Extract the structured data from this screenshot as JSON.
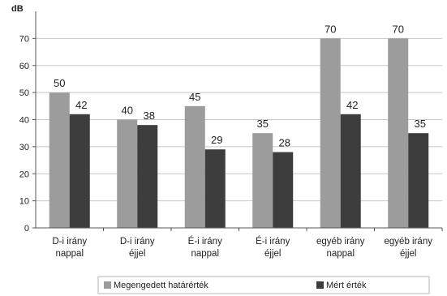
{
  "colors": {
    "series1": "#9c9c9c",
    "series2": "#3d3d3d",
    "axis": "#555555",
    "grid": "#c8c8c8"
  },
  "chart_data": {
    "type": "bar",
    "ylabel": "dB",
    "ylim": [
      0,
      80
    ],
    "yticks": [
      0,
      10,
      20,
      30,
      40,
      50,
      60,
      70
    ],
    "grid": true,
    "legend_position": "bottom",
    "categories": [
      [
        "D-i irány",
        "nappal"
      ],
      [
        "D-i irány",
        "éjjel"
      ],
      [
        "É-i irány",
        "nappal"
      ],
      [
        "É-i irány",
        "éjjel"
      ],
      [
        "egyéb irány",
        "nappal"
      ],
      [
        "egyéb irány",
        "éjjel"
      ]
    ],
    "series": [
      {
        "name": "Megengedett határérték",
        "values": [
          50,
          40,
          45,
          35,
          70,
          70
        ]
      },
      {
        "name": "Mért érték",
        "values": [
          42,
          38,
          29,
          28,
          42,
          35
        ]
      }
    ]
  }
}
